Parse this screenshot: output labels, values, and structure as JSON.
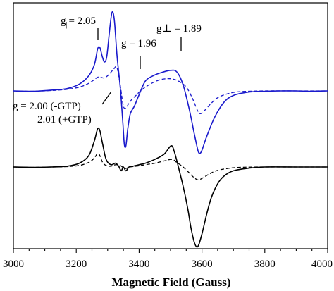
{
  "chart_data": {
    "type": "line",
    "xlabel": "Magnetic Field (Gauss)",
    "ylabel": "",
    "xlim": [
      3000,
      4000
    ],
    "xticks": [
      "3000",
      "3200",
      "3400",
      "3600",
      "3800",
      "4000"
    ],
    "colors": {
      "blue": "#1a1acc",
      "black": "#000000"
    },
    "series": [
      {
        "style": "solid",
        "color": "blue",
        "offset": 1,
        "points": [
          [
            3000,
            0
          ],
          [
            3060,
            -0.005
          ],
          [
            3120,
            0.01
          ],
          [
            3170,
            0.03
          ],
          [
            3210,
            0.09
          ],
          [
            3240,
            0.2
          ],
          [
            3258,
            0.35
          ],
          [
            3268,
            0.55
          ],
          [
            3275,
            0.57
          ],
          [
            3283,
            0.45
          ],
          [
            3290,
            0.38
          ],
          [
            3297,
            0.45
          ],
          [
            3305,
            0.75
          ],
          [
            3312,
            1.0
          ],
          [
            3317,
            1.03
          ],
          [
            3322,
            0.9
          ],
          [
            3330,
            0.45
          ],
          [
            3340,
            0.05
          ],
          [
            3348,
            -0.4
          ],
          [
            3353,
            -0.7
          ],
          [
            3358,
            -0.72
          ],
          [
            3364,
            -0.5
          ],
          [
            3372,
            -0.3
          ],
          [
            3385,
            -0.2
          ],
          [
            3400,
            -0.05
          ],
          [
            3420,
            0.13
          ],
          [
            3445,
            0.2
          ],
          [
            3470,
            0.24
          ],
          [
            3500,
            0.27
          ],
          [
            3520,
            0.25
          ],
          [
            3540,
            0.08
          ],
          [
            3560,
            -0.25
          ],
          [
            3575,
            -0.55
          ],
          [
            3587,
            -0.78
          ],
          [
            3593,
            -0.82
          ],
          [
            3600,
            -0.78
          ],
          [
            3615,
            -0.6
          ],
          [
            3640,
            -0.35
          ],
          [
            3670,
            -0.15
          ],
          [
            3700,
            -0.06
          ],
          [
            3750,
            -0.015
          ],
          [
            3800,
            -0.005
          ],
          [
            3850,
            0
          ],
          [
            3900,
            0
          ],
          [
            3950,
            -0.005
          ],
          [
            4000,
            0
          ]
        ]
      },
      {
        "style": "dashed",
        "color": "blue",
        "offset": 1,
        "points": [
          [
            3000,
            0
          ],
          [
            3060,
            -0.005
          ],
          [
            3120,
            0.005
          ],
          [
            3170,
            0.02
          ],
          [
            3210,
            0.05
          ],
          [
            3240,
            0.1
          ],
          [
            3258,
            0.15
          ],
          [
            3268,
            0.18
          ],
          [
            3278,
            0.18
          ],
          [
            3288,
            0.17
          ],
          [
            3300,
            0.2
          ],
          [
            3318,
            0.28
          ],
          [
            3328,
            0.32
          ],
          [
            3335,
            0.2
          ],
          [
            3342,
            0.02
          ],
          [
            3350,
            -0.2
          ],
          [
            3358,
            -0.23
          ],
          [
            3365,
            -0.18
          ],
          [
            3375,
            -0.12
          ],
          [
            3390,
            -0.06
          ],
          [
            3410,
            0.02
          ],
          [
            3440,
            0.1
          ],
          [
            3470,
            0.15
          ],
          [
            3500,
            0.16
          ],
          [
            3525,
            0.13
          ],
          [
            3550,
            0.05
          ],
          [
            3570,
            -0.1
          ],
          [
            3585,
            -0.25
          ],
          [
            3595,
            -0.3
          ],
          [
            3610,
            -0.25
          ],
          [
            3630,
            -0.16
          ],
          [
            3650,
            -0.09
          ],
          [
            3680,
            -0.04
          ],
          [
            3720,
            -0.01
          ],
          [
            3800,
            0
          ],
          [
            3900,
            0
          ],
          [
            4000,
            0
          ]
        ]
      },
      {
        "style": "solid",
        "color": "black",
        "offset": 0,
        "points": [
          [
            3000,
            0
          ],
          [
            3060,
            -0.005
          ],
          [
            3120,
            0
          ],
          [
            3170,
            0.01
          ],
          [
            3210,
            0.05
          ],
          [
            3240,
            0.15
          ],
          [
            3258,
            0.35
          ],
          [
            3268,
            0.5
          ],
          [
            3275,
            0.48
          ],
          [
            3284,
            0.3
          ],
          [
            3295,
            0.1
          ],
          [
            3310,
            0.03
          ],
          [
            3325,
            0.05
          ],
          [
            3335,
            0.01
          ],
          [
            3343,
            -0.05
          ],
          [
            3350,
            0.0
          ],
          [
            3358,
            -0.05
          ],
          [
            3368,
            0.0
          ],
          [
            3380,
            0.01
          ],
          [
            3400,
            0.03
          ],
          [
            3420,
            0.05
          ],
          [
            3450,
            0.1
          ],
          [
            3480,
            0.17
          ],
          [
            3502,
            0.28
          ],
          [
            3512,
            0.2
          ],
          [
            3525,
            0.0
          ],
          [
            3540,
            -0.25
          ],
          [
            3555,
            -0.55
          ],
          [
            3565,
            -0.8
          ],
          [
            3575,
            -0.98
          ],
          [
            3583,
            -1.05
          ],
          [
            3590,
            -1.02
          ],
          [
            3600,
            -0.88
          ],
          [
            3615,
            -0.62
          ],
          [
            3630,
            -0.4
          ],
          [
            3650,
            -0.22
          ],
          [
            3670,
            -0.12
          ],
          [
            3700,
            -0.05
          ],
          [
            3750,
            -0.015
          ],
          [
            3800,
            0
          ],
          [
            3900,
            0
          ],
          [
            4000,
            0
          ]
        ]
      },
      {
        "style": "dashed",
        "color": "black",
        "offset": 0,
        "points": [
          [
            3000,
            0
          ],
          [
            3060,
            -0.005
          ],
          [
            3120,
            0
          ],
          [
            3170,
            0.005
          ],
          [
            3210,
            0.02
          ],
          [
            3240,
            0.06
          ],
          [
            3258,
            0.12
          ],
          [
            3268,
            0.18
          ],
          [
            3275,
            0.15
          ],
          [
            3284,
            0.06
          ],
          [
            3295,
            0.02
          ],
          [
            3310,
            0.01
          ],
          [
            3325,
            0.03
          ],
          [
            3340,
            0.02
          ],
          [
            3355,
            -0.02
          ],
          [
            3370,
            0.0
          ],
          [
            3390,
            0.01
          ],
          [
            3420,
            0.03
          ],
          [
            3450,
            0.05
          ],
          [
            3480,
            0.08
          ],
          [
            3505,
            0.1
          ],
          [
            3520,
            0.06
          ],
          [
            3540,
            0.0
          ],
          [
            3560,
            -0.08
          ],
          [
            3575,
            -0.14
          ],
          [
            3588,
            -0.17
          ],
          [
            3600,
            -0.15
          ],
          [
            3620,
            -0.1
          ],
          [
            3645,
            -0.05
          ],
          [
            3680,
            -0.02
          ],
          [
            3720,
            -0.005
          ],
          [
            3800,
            0
          ],
          [
            3900,
            0
          ],
          [
            4000,
            0
          ]
        ]
      }
    ],
    "annotations": [
      {
        "id": "gpar",
        "x": 3275,
        "y": 0.62
      },
      {
        "id": "g196",
        "x": 3410,
        "y": 0.27
      },
      {
        "id": "gperp",
        "x": 3540,
        "y": 0.58
      },
      {
        "id": "g200",
        "x": 3325,
        "y": -0.1
      }
    ]
  },
  "labels": {
    "gpar_prefix": "g",
    "gpar_sub": "||",
    "gpar_rest": "= 2.05",
    "g196": "g = 1.96",
    "gperp": "g⊥ = 1.89",
    "g200_line1": "g = 2.00 (-GTP)",
    "g200_line2": "2.01 (+GTP)"
  }
}
